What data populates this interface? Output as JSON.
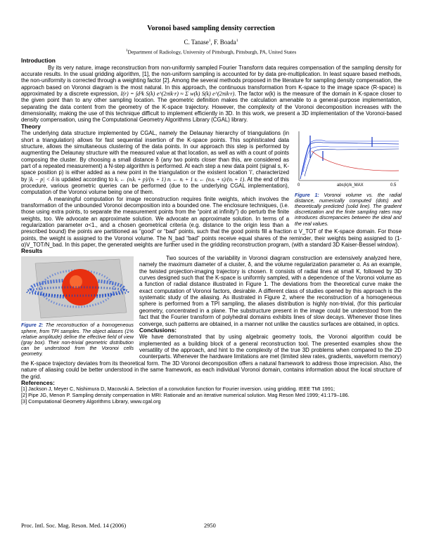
{
  "header": {
    "title": "Voronoi based sampling density correction",
    "authors": [
      {
        "name": "C. Tanase",
        "mark": "1"
      },
      {
        "name": ", F. Boada",
        "mark": "1"
      }
    ],
    "affiliation_mark": "1",
    "affiliation": "Department of Radiology, University of Pittsburgh, Pittsburgh, PA, United States"
  },
  "introduction": {
    "heading": "Introduction",
    "text_a": "By its very nature, image reconstruction from non-uniformly sampled Fourier Transform data requires compensation of the sampling density for accurate results. In the usual gridding algorithm, [1], the non-uniform sampling is accounted for by data pre-multiplication. In least square based methods, the non-uniformity is corrected through a weighting factor [2]. Among the several methods proposed in the literature for sampling density compensation, the approach based on Voronoi diagram is the most natural. In this approach, the continuous transformation from K-space to the image space (R-space) is approximated by a discrete expression,",
    "formula": "I(r) = ∫d³k S(k) e^(2πik·r) ≈ Σ w(k) S(k) e^(2πik·r)",
    "text_b": ". The factor w(k) is the measure of the domain in K-space closer to the given point than to any other sampling location. The geometric definition makes the calculation amenable to a general-purpose implementation, separating the data content from the geometry of the K-space trajectory. However, the complexity of the Voronoi decomposition increases with the dimensionality, making the use of this technique difficult to implement efficiently in 3D. In this work, we present a 3D implementation of the Voronoi-based density compensation, using the Computational Geometry Algorithms Library (CGAL) library."
  },
  "theory": {
    "heading": "Theory",
    "text_a": "The underlying data structure implemented by CGAL, namely the Delaunay hierarchy of triangulations (in short a triangulation) allows for fast sequential insertion of the K-space points. This sophisticated data structure, allows the simultaneous clustering of the data points. In our approach this step is performed by augmenting the Delaunay structure with the measured value at that location, as well as with a count of points composing the cluster. By choosing a small distance δ (any two points closer than this, are considered as part of a repeated measurement) a N-step algorithm is performed. At each step a new data point (signal s, K-space position p) is either added as a new point in the triangulation or the existent location 'i', characterized by",
    "condition": "|kᵢ − p| < δ",
    "text_b": "is updated according to",
    "update": "kᵢ ← (nᵢkᵢ + p)/(nᵢ + 1)   nᵢ ← nᵢ + 1   sᵢ ← (nᵢsᵢ + s)/(nᵢ + 1)",
    "text_c": ". At the end of this procedure, various geometric queries can be performed (due to the underlying CGAL implementation), computation of the Voronoi volume being one of them.",
    "text_d": "A meaningful computation for image reconstruction requires finite weights, which involves the transformation of the unbounded Voronoi decomposition into a bounded one. The enclosure techniques, (i.e. those using extra points, to separate the measurement points from the “point at infinity”) do perturb the finite weights, too. We advocate an approximate solution. We advocate an approximate solution. In terms of a regularization parameter α<1., and a chosen geometrical criteria (e.g. distance to the origin less than a prescribed bound) the points are partitioned as “good” or “bad” points, such that the good points fill a fraction α V_TOT of the K-space domain. For those points, the weight is assigned to the Voronoi volume. The N_bad “bad” points receive equal shares of the reminder, their weights being assigned to (1- α)V_TOT/N_bad. In this paper, the generated weights are further used in the gridding reconstruction program, (with a standard 3D Kaiser-Bessel window)."
  },
  "figure_1": {
    "x_start": "0",
    "x_label": "abs(k)/k_MAX",
    "x_end": "0.5",
    "label": "Figure 1:",
    "caption": "Voronoi volume vs. the radial distance, numerically computed (dots) and theoretically predicted (solid line). The gradient discretization and the finite sampling rates may introduces discrepancies between the ideal and the real values."
  },
  "results": {
    "heading": "Results",
    "text": "Two sources of the variability in Voronoi diagram construction are extensively analyzed here, namely the maximum diameter of a cluster, δ, and the volume regularization parameter α. As an example, the twisted projection-imaging trajectory is chosen. It consists of radial lines at small K, followed by 3D curves designed such that the K-space is uniformly sampled, with a dependence of the Voronoi volume as a function of radial distance illustrated in Figure 1. The deviations from the theoretical curve make the exact computation of Voronoi factors, desirable. A different class of studies opened by this approach is the systematic study of the aliasing. As illustrated in Figure 2, where the reconstruction of a homogeneous sphere is performed from a TPI sampling, the aliases distribution is highly non-trivial, (for this particular geometry, concentrated in a plane. The substructure present in the image could be understood from the fact that the Fourier transform of polyhedral domains exhibits lines of slow decays. Whenever those lines converge, such patterns are obtained, in a manner not unlike the caustics surfaces are obtained, in optics."
  },
  "figure_2": {
    "label": "Figure 2:",
    "caption": "The reconstruction of a homogeneous sphere, from TPI samples. The object aliases (1% relative amplitude) define the effective field of view (gray box). Their non-trivial geometric distribution can be understood from the Voronoi cells geometry."
  },
  "conclusions": {
    "heading": "Conclusions:",
    "text": "We have demonstrated that by using algebraic geometry tools, the Voronoi algorithm could be implemented as a building block of a general reconstruction tool. The presented examples show the versatility of the approach, and hint to the complexity of the true 3D problems when compared to the 2D counterparts. Whenever the hardware limitations are met (limited slew rates, gradients, waveform memory) the K-space trajectory deviates from its theoretical form. The 3D Voronoi decomposition offers a natural framework to address those imprecision. Also, the nature of aliasing could be better understood in the same framework, as each individual Voronoi domain, contains information about the local structure of the grid."
  },
  "references": {
    "heading": "References:",
    "items": [
      "[1] Jackson J, Meyer C, Nishimura D, Macovski A. Selection of a convolution function for Fourier inversion. using gridding. IEEE TMI 1991;",
      "[2] Pipe JG, Menon P. Sampling density compensation in MRI: Rationale and an iterative numerical solution. Mag Reson Med 1999; 41:179–186.",
      "[3] Computational Geometry Algorithms Library, www.cgal.org"
    ]
  },
  "footer": {
    "journal": "Proc. Intl. Soc. Mag. Reson. Med. 14 (2006)",
    "page": "2950"
  }
}
